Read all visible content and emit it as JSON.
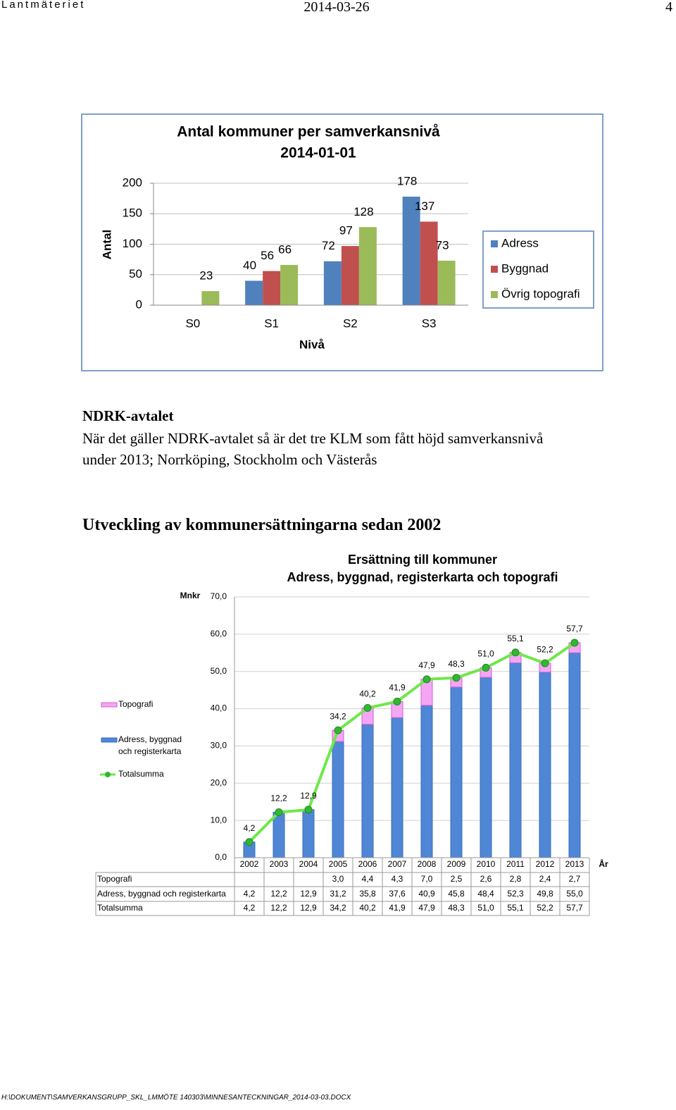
{
  "header": {
    "organization": "Lantmäteriet",
    "date": "2014-03-26",
    "page": 4
  },
  "chart_data": [
    {
      "type": "bar",
      "title": "Antal kommuner per samverkansnivå",
      "subtitle": "2014-01-01",
      "y_label": "Antal",
      "x_label": "Nivå",
      "categories": [
        "S0",
        "S1",
        "S2",
        "S3"
      ],
      "series": [
        {
          "name": "Adress",
          "color": "#4f81bd",
          "values": [
            null,
            40,
            72,
            178
          ]
        },
        {
          "name": "Byggnad",
          "color": "#c0504d",
          "values": [
            null,
            56,
            97,
            137
          ]
        },
        {
          "name": "Övrig topografi",
          "color": "#9bbb59",
          "values": [
            23,
            66,
            128,
            73
          ]
        }
      ],
      "ylim": [
        0,
        200
      ],
      "yticks": [
        0,
        50,
        100,
        150,
        200
      ],
      "grid": true,
      "legend": "right"
    },
    {
      "type": "bar_line",
      "title": "Ersättning till kommuner",
      "subtitle": "Adress, byggnad, registerkarta och topografi",
      "y_label": "Mnkr",
      "x_label": "År",
      "categories": [
        "2002",
        "2003",
        "2004",
        "2005",
        "2006",
        "2007",
        "2008",
        "2009",
        "2010",
        "2011",
        "2012",
        "2013"
      ],
      "series": [
        {
          "name": "Topografi",
          "type": "bar",
          "color": "#f4a6f4",
          "values": [
            null,
            null,
            null,
            3.0,
            4.4,
            4.3,
            7.0,
            2.5,
            2.6,
            2.8,
            2.4,
            2.7
          ],
          "value_labels": [
            null,
            null,
            null,
            "3,0",
            "4,4",
            "4,3",
            "7,0",
            "2,5",
            "2,6",
            "2,8",
            "2,4",
            "2,7"
          ]
        },
        {
          "name": "Adress, byggnad och registerkarta",
          "type": "bar",
          "color": "#4f86d6",
          "values": [
            4.2,
            12.2,
            12.9,
            31.2,
            35.8,
            37.6,
            40.9,
            45.8,
            48.4,
            52.3,
            49.8,
            55.0
          ],
          "value_labels": [
            "4,2",
            "12,2",
            "12,9",
            "31,2",
            "35,8",
            "37,6",
            "40,9",
            "45,8",
            "48,4",
            "52,3",
            "49,8",
            "55,0"
          ]
        },
        {
          "name": "Totalsumma",
          "type": "line",
          "color": "#6ee84a",
          "values": [
            4.2,
            12.2,
            12.9,
            34.2,
            40.2,
            41.9,
            47.9,
            48.3,
            51.0,
            55.1,
            52.2,
            57.7
          ],
          "value_labels": [
            "4,2",
            "12,2",
            "12,9",
            "34,2",
            "40,2",
            "41,9",
            "47,9",
            "48,3",
            "51,0",
            "55,1",
            "52,2",
            "57,7"
          ]
        }
      ],
      "ylim": [
        0,
        70
      ],
      "yticks": [
        {
          "value": 0,
          "label": "0,0"
        },
        {
          "value": 10,
          "label": "10,0"
        },
        {
          "value": 20,
          "label": "20,0"
        },
        {
          "value": 30,
          "label": "30,0"
        },
        {
          "value": 40,
          "label": "40,0"
        },
        {
          "value": 50,
          "label": "50,0"
        },
        {
          "value": 60,
          "label": "60,0"
        },
        {
          "value": 70,
          "label": "70,0"
        }
      ],
      "grid": true,
      "legend": "left"
    }
  ],
  "section": {
    "heading": "NDRK-avtalet",
    "paragraph": "När det gäller NDRK-avtalet så är det tre KLM som fått höjd samverkansnivå under 2013; Norrköping, Stockholm och Västerås",
    "heading2": "Utveckling av kommunersättningarna sedan 2002"
  },
  "footer": "H:\\DOKUMENT\\SAMVERKANSGRUPP_SKL_LMMÖTE 140303\\MINNESANTECKNINGAR_2014-03-03.DOCX"
}
